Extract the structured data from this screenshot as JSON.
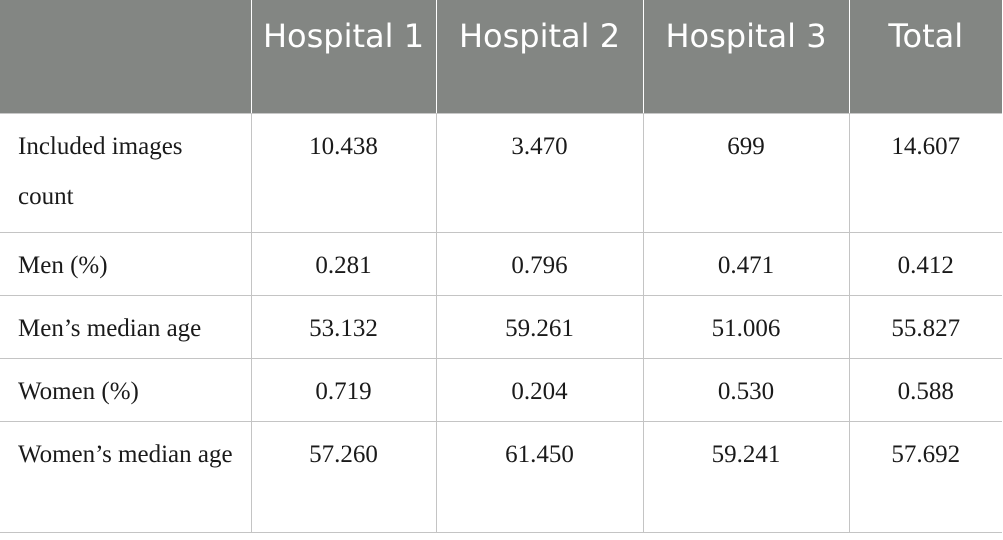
{
  "table": {
    "headers": [
      "",
      "Hospital 1",
      "Hospital 2",
      "Hospital 3",
      "Total"
    ],
    "rows": [
      {
        "label": "Included images count",
        "values": [
          "10.438",
          "3.470",
          "699",
          "14.607"
        ]
      },
      {
        "label": "Men (%)",
        "values": [
          "0.281",
          "0.796",
          "0.471",
          "0.412"
        ]
      },
      {
        "label": "Men’s median age",
        "values": [
          "53.132",
          "59.261",
          "51.006",
          "55.827"
        ]
      },
      {
        "label": "Women (%)",
        "values": [
          "0.719",
          "0.204",
          "0.530",
          "0.588"
        ]
      },
      {
        "label": "Women’s median age",
        "values": [
          "57.260",
          "61.450",
          "59.241",
          "57.692"
        ]
      }
    ]
  },
  "colors": {
    "header_bg": "#838683",
    "header_text": "#ffffff",
    "grid": "#c4c4c4"
  }
}
